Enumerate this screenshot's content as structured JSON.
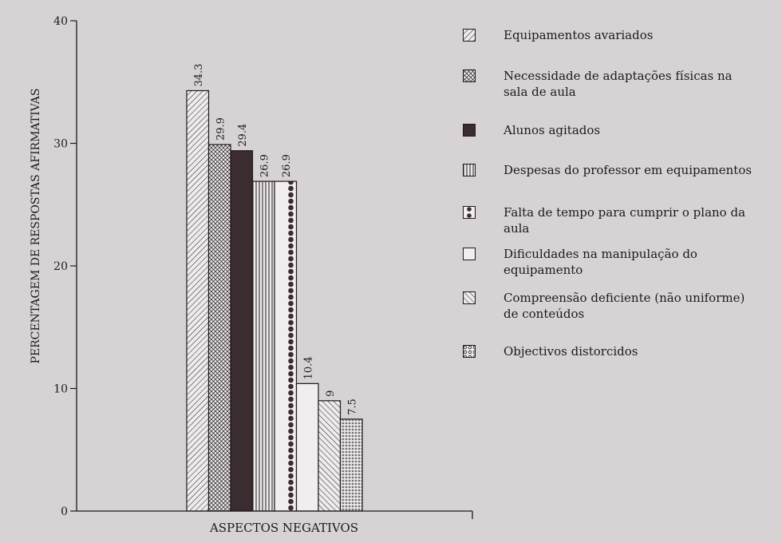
{
  "chart_data": {
    "type": "bar",
    "xlabel": "ASPECTOS NEGATIVOS",
    "ylabel": "PERCENTAGEM DE RESPOSTAS AFIRMATIVAS",
    "ylim": [
      0,
      40
    ],
    "yticks": [
      0,
      10,
      20,
      30,
      40
    ],
    "categories": [
      "Equipamentos avariados",
      "Necessidade de adaptações físicas na sala de aula",
      "Alunos agitados",
      "Despesas do professor em equipamentos",
      "Falta de tempo para cumprir o plano da aula",
      "Dificuldades na manipulação do equipamento",
      "Compreensão deficiente (não uniforme) de conteúdos",
      "Objectivos distorcidos"
    ],
    "values": [
      34.3,
      29.9,
      29.4,
      26.9,
      26.9,
      10.4,
      9,
      7.5
    ],
    "value_labels": [
      "34.3",
      "29.9",
      "29.4",
      "26.9",
      "26.9",
      "10.4",
      "9",
      "7.5"
    ],
    "patterns": [
      "diagonal",
      "crosshatch",
      "solid",
      "vertical",
      "dots-large",
      "empty",
      "diagonal-rev",
      "dots-small"
    ],
    "grid": false,
    "legend_position": "right"
  },
  "legend": {
    "items": [
      {
        "label": "Equipamentos avariados",
        "pattern": "diagonal"
      },
      {
        "label": "Necessidade de adaptações físicas na sala de aula",
        "pattern": "crosshatch"
      },
      {
        "label": "Alunos agitados",
        "pattern": "solid"
      },
      {
        "label": "Despesas do professor em equipamentos",
        "pattern": "vertical"
      },
      {
        "label": "Falta de tempo para cumprir o plano da aula",
        "pattern": "dots-large"
      },
      {
        "label": "Dificuldades na manipulação do equipamento",
        "pattern": "empty"
      },
      {
        "label": "Compreensão deficiente (não uniforme) de conteúdos",
        "pattern": "diagonal-rev"
      },
      {
        "label": "Objectivos distorcidos",
        "pattern": "dots-small"
      }
    ]
  },
  "colors": {
    "background": "#d7d2d3",
    "ink": "#1e1a1c",
    "solid": "#3a2c2f",
    "empty": "#f2eeef"
  }
}
